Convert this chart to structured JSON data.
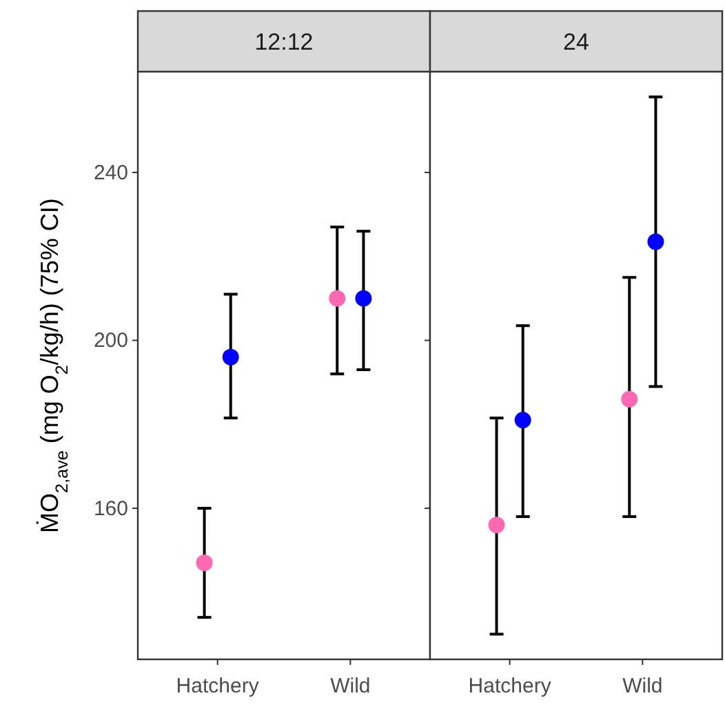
{
  "chart_data": [
    {
      "type": "scatter",
      "title": "12:12",
      "ylabel": "ṀO$_{2,ave}$ (mg O$_{2}$/kg/h) (75% CI)",
      "categories": [
        "Hatchery",
        "Wild"
      ],
      "ylim": [
        124,
        264
      ],
      "yticks": [
        160,
        200,
        240
      ],
      "marker": "circle",
      "series": [
        {
          "color": "#ff69b4",
          "values": [
            147,
            210
          ],
          "errors": [
            [
              134,
              160
            ],
            [
              192,
              227
            ]
          ]
        },
        {
          "color": "#0000ff",
          "values": [
            196,
            210
          ],
          "errors": [
            [
              181.5,
              211
            ],
            [
              193,
              226
            ]
          ]
        }
      ]
    },
    {
      "type": "scatter",
      "title": "24",
      "categories": [
        "Hatchery",
        "Wild"
      ],
      "ylim": [
        124,
        264
      ],
      "yticks": [
        160,
        200,
        240
      ],
      "tick_labels": "x",
      "marker": "circle",
      "series": [
        {
          "color": "#ff69b4",
          "values": [
            156,
            186
          ],
          "errors": [
            [
              130,
              181.5
            ],
            [
              158,
              215
            ]
          ]
        },
        {
          "color": "#0000ff",
          "values": [
            181,
            223.5
          ],
          "errors": [
            [
              158,
              203.5
            ],
            [
              189,
              258
            ]
          ]
        }
      ]
    }
  ]
}
